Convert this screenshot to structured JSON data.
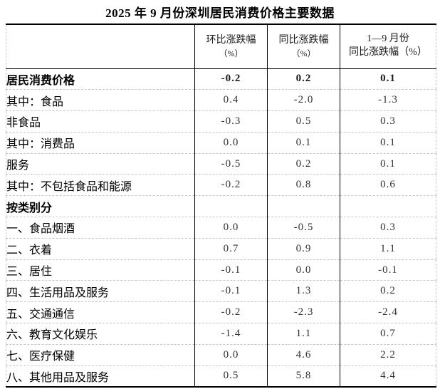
{
  "title": "2025 年 9 月份深圳居民消费价格主要数据",
  "colors": {
    "solid_border": "#000000",
    "dashed_border": "#c6c6c6",
    "label_text": "#000000",
    "value_text": "#333333",
    "background": "#ffffff"
  },
  "table": {
    "corner_label": "",
    "headers": [
      {
        "line1": "环比涨跌幅",
        "line2": "（%）"
      },
      {
        "line1": "同比涨跌幅",
        "line2": "（%）"
      },
      {
        "line1": "1—9 月份",
        "line2": "同比涨跌幅（%）"
      }
    ],
    "rows": [
      {
        "label": "居民消费价格",
        "indent": 0,
        "bold": true,
        "values": [
          "-0.2",
          "0.2",
          "0.1"
        ]
      },
      {
        "label": "其中：食品",
        "indent": 0,
        "bold": false,
        "values": [
          "0.4",
          "-2.0",
          "-1.3"
        ]
      },
      {
        "label": "非食品",
        "indent": 1,
        "bold": false,
        "values": [
          "-0.3",
          "0.5",
          "0.3"
        ]
      },
      {
        "label": "其中：消费品",
        "indent": 0,
        "bold": false,
        "values": [
          "0.0",
          "0.1",
          "0.1"
        ]
      },
      {
        "label": "服务",
        "indent": 1,
        "bold": false,
        "values": [
          "-0.5",
          "0.2",
          "0.1"
        ]
      },
      {
        "label": "其中：不包括食品和能源",
        "indent": 0,
        "bold": false,
        "values": [
          "-0.2",
          "0.8",
          "0.6"
        ]
      },
      {
        "label": "按类别分",
        "indent": 0,
        "bold": true,
        "values": [
          "",
          "",
          ""
        ]
      },
      {
        "label": "一、食品烟酒",
        "indent": 2,
        "bold": false,
        "values": [
          "0.0",
          "-0.5",
          "0.3"
        ]
      },
      {
        "label": "二、衣着",
        "indent": 2,
        "bold": false,
        "values": [
          "0.7",
          "0.9",
          "1.1"
        ]
      },
      {
        "label": "三、居住",
        "indent": 2,
        "bold": false,
        "values": [
          "-0.1",
          "0.0",
          "-0.1"
        ]
      },
      {
        "label": "四、生活用品及服务",
        "indent": 2,
        "bold": false,
        "values": [
          "-0.1",
          "1.3",
          "0.2"
        ]
      },
      {
        "label": "五、交通通信",
        "indent": 2,
        "bold": false,
        "values": [
          "-0.2",
          "-2.3",
          "-2.4"
        ]
      },
      {
        "label": "六、教育文化娱乐",
        "indent": 2,
        "bold": false,
        "values": [
          "-1.4",
          "1.1",
          "0.7"
        ]
      },
      {
        "label": "七、医疗保健",
        "indent": 2,
        "bold": false,
        "values": [
          "0.0",
          "4.6",
          "2.2"
        ]
      },
      {
        "label": "八、其他用品及服务",
        "indent": 2,
        "bold": false,
        "values": [
          "0.5",
          "5.8",
          "4.4"
        ]
      }
    ]
  }
}
